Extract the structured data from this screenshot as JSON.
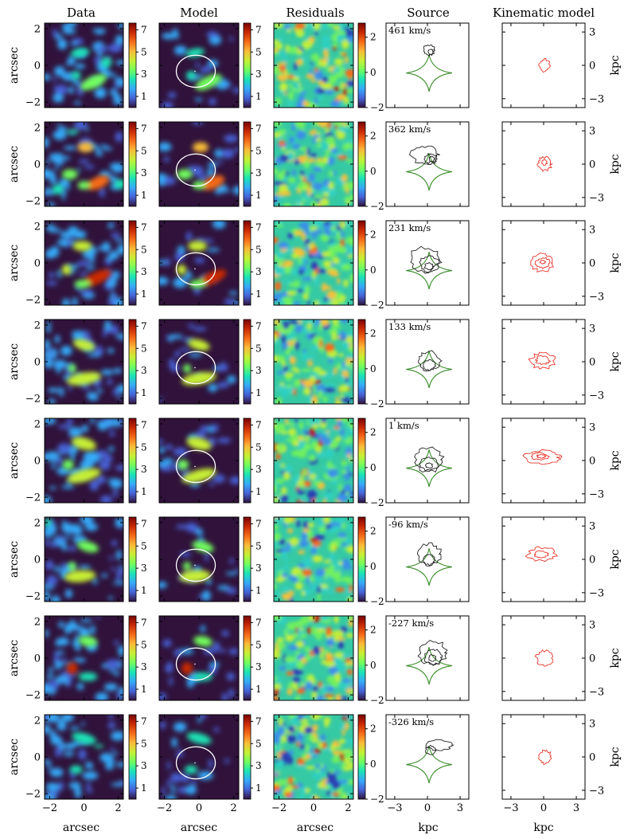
{
  "figure": {
    "column_titles": [
      "Data",
      "Model",
      "Residuals",
      "Source",
      "Kinematic model"
    ],
    "y_axis_label": "arcsec",
    "x_axis_label_image": "arcsec",
    "x_axis_label_source": "kpc",
    "right_axis_label": "kpc",
    "image_ticks": [
      "−2",
      "0",
      "2"
    ],
    "source_ticks": [
      "−3",
      "0",
      "3"
    ],
    "colorbar_ticks_flux": [
      "1",
      "3",
      "5",
      "7"
    ],
    "colorbar_ticks_residual": [
      "−2",
      "0",
      "2"
    ],
    "colormaps": {
      "flux": [
        "#30123b",
        "#4662d7",
        "#36aaf9",
        "#1ae4b6",
        "#72fe5e",
        "#c7ef34",
        "#fabb39",
        "#f66b19",
        "#ca2a04",
        "#7a0403"
      ],
      "background": "#30123b",
      "critical_curve": "#ffffff",
      "caustic": "#3a8d2a",
      "source_contours": "#222222",
      "kinematic_contours": "#e8352a"
    },
    "velocity_channels": [
      {
        "label": "461 km/s"
      },
      {
        "label": "362 km/s"
      },
      {
        "label": "231 km/s"
      },
      {
        "label": "133 km/s"
      },
      {
        "label": "1 km/s"
      },
      {
        "label": "-96 km/s"
      },
      {
        "label": "-227 km/s"
      },
      {
        "label": "-326 km/s"
      }
    ]
  }
}
